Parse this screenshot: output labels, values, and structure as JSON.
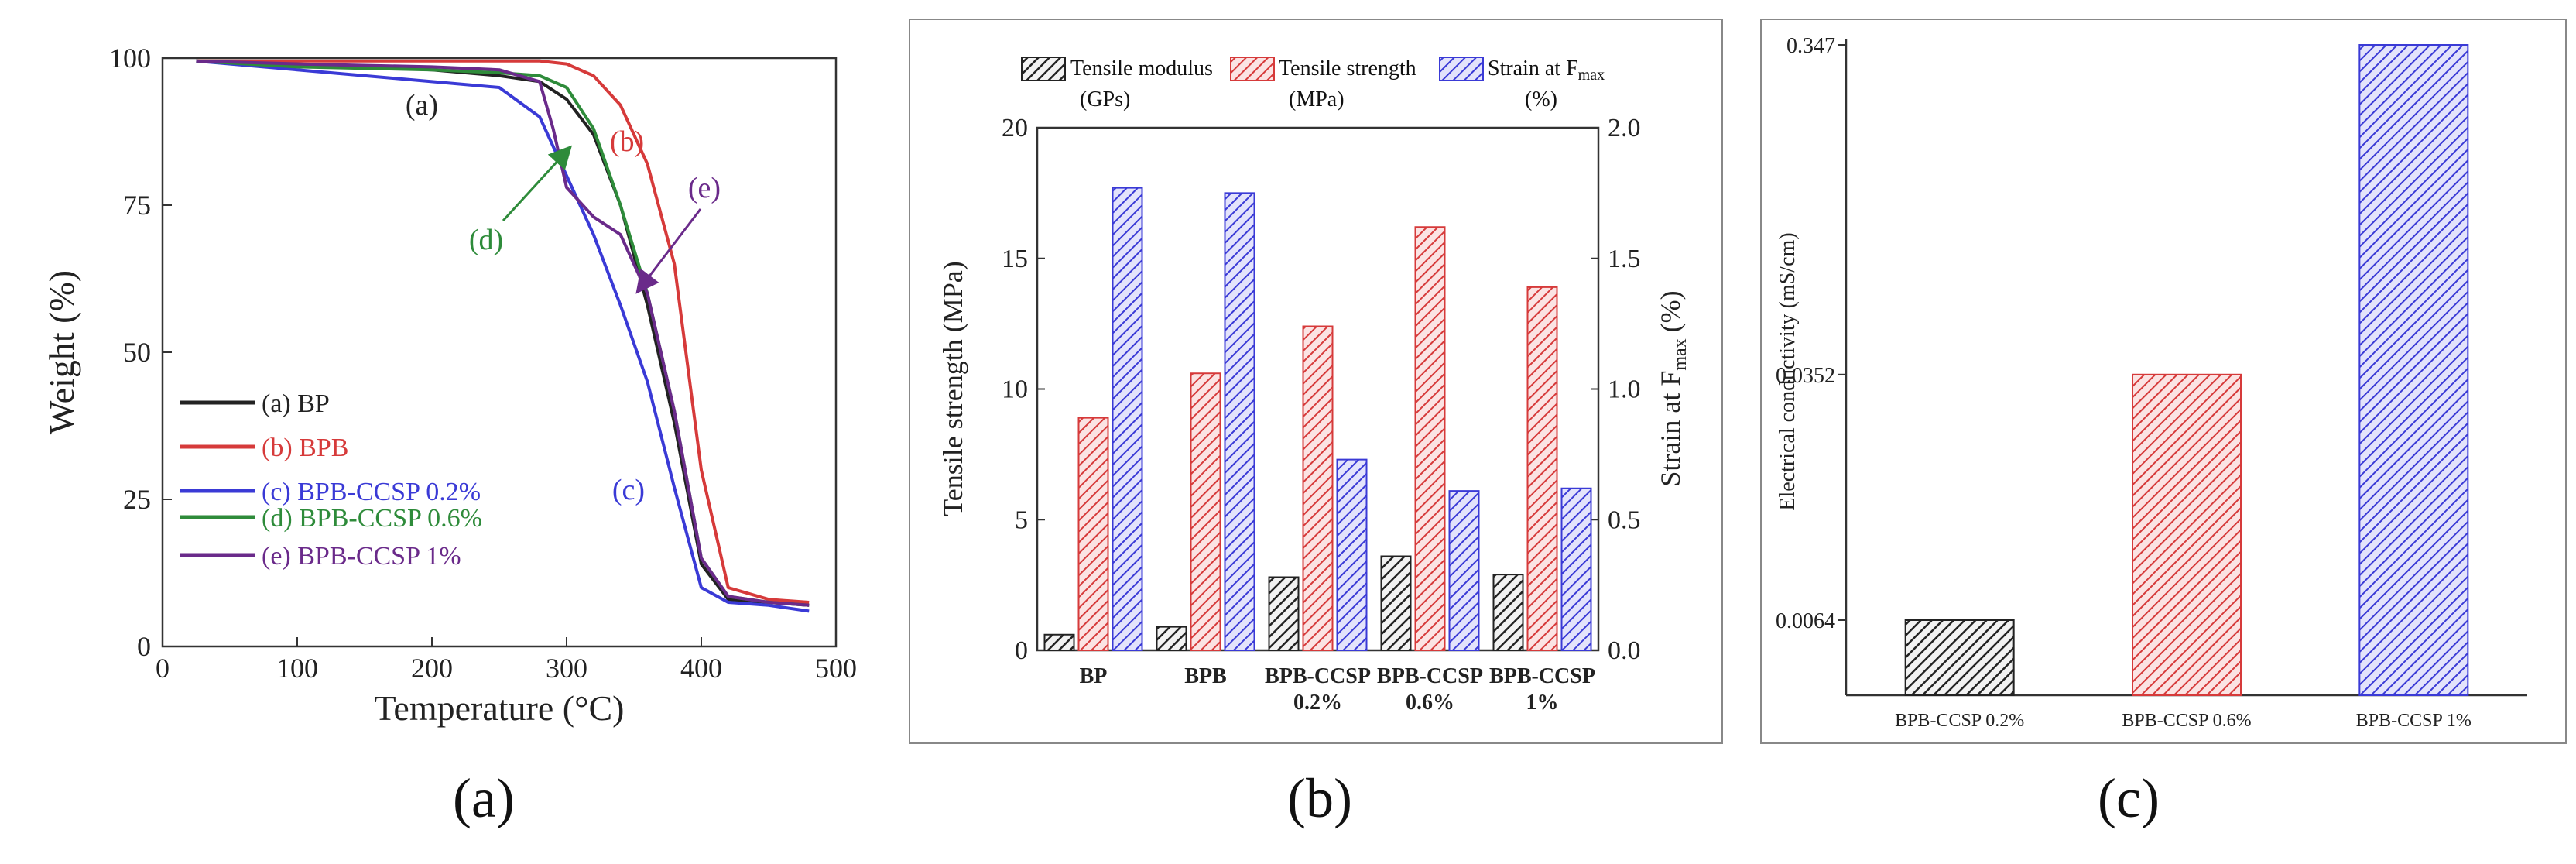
{
  "colors": {
    "black": "#222222",
    "red": "#d63a3a",
    "blue": "#3a3ad6",
    "green": "#2e8b3a",
    "purple": "#6a2a8a",
    "frame": "#555555"
  },
  "captions": {
    "a": "(a)",
    "b": "(b)",
    "c": "(c)"
  },
  "chart_data": [
    {
      "type": "line",
      "xlabel": "Temperature (°C)",
      "ylabel": "Weight (%)",
      "xlim": [
        0,
        500
      ],
      "ylim": [
        0,
        100
      ],
      "xticks": [
        0,
        100,
        200,
        300,
        400,
        500
      ],
      "yticks": [
        0,
        25,
        50,
        75,
        100
      ],
      "legend": {
        "placement": "lower-left",
        "entries": [
          "(a) BP",
          "(b) BPB",
          "(c) BPB-CCSP 0.2%",
          "(d) BPB-CCSP 0.6%",
          "(e) BPB-CCSP 1%"
        ]
      },
      "annotations": [
        "(a)",
        "(b)",
        "(c)",
        "(d)",
        "(e)"
      ],
      "series": [
        {
          "name": "(a) BP",
          "color": "#222222",
          "x": [
            25,
            100,
            200,
            250,
            280,
            300,
            320,
            340,
            360,
            380,
            400,
            420,
            450,
            480
          ],
          "y": [
            99.5,
            99,
            98,
            97,
            96,
            93,
            87,
            75,
            58,
            38,
            14,
            8,
            7.5,
            7
          ]
        },
        {
          "name": "(b) BPB",
          "color": "#d63a3a",
          "x": [
            25,
            100,
            200,
            280,
            300,
            320,
            340,
            360,
            380,
            400,
            420,
            450,
            480
          ],
          "y": [
            99.5,
            99.5,
            99.5,
            99.5,
            99,
            97,
            92,
            82,
            65,
            30,
            10,
            8,
            7.5
          ]
        },
        {
          "name": "(c) BPB-CCSP 0.2%",
          "color": "#3a3ad6",
          "x": [
            25,
            100,
            200,
            250,
            280,
            300,
            320,
            340,
            360,
            380,
            400,
            420,
            450,
            480
          ],
          "y": [
            99.5,
            98,
            96,
            95,
            90,
            80,
            70,
            58,
            45,
            27,
            10,
            7.5,
            7,
            6
          ]
        },
        {
          "name": "(d) BPB-CCSP 0.6%",
          "color": "#2e8b3a",
          "x": [
            25,
            100,
            200,
            250,
            280,
            300,
            320,
            340,
            360,
            380,
            400,
            420,
            450,
            480
          ],
          "y": [
            99.5,
            98.5,
            98,
            97.5,
            97,
            95,
            88,
            75,
            60,
            40,
            15,
            8.5,
            7.5,
            7
          ]
        },
        {
          "name": "(e) BPB-CCSP 1%",
          "color": "#6a2a8a",
          "x": [
            25,
            100,
            200,
            250,
            280,
            290,
            300,
            320,
            340,
            360,
            380,
            400,
            420,
            450,
            480
          ],
          "y": [
            99.5,
            99,
            98.5,
            98,
            96,
            88,
            78,
            73,
            70,
            60,
            40,
            15,
            8.5,
            7.5,
            7
          ]
        }
      ]
    },
    {
      "type": "bar",
      "categories": [
        "BP",
        "BPB",
        "BPB-CCSP 0.2%",
        "BPB-CCSP 0.6%",
        "BPB-CCSP 1%"
      ],
      "category_lines": [
        [
          "BP"
        ],
        [
          "BPB"
        ],
        [
          "BPB-CCSP",
          "0.2%"
        ],
        [
          "BPB-CCSP",
          "0.6%"
        ],
        [
          "BPB-CCSP",
          "1%"
        ]
      ],
      "ylabel": "Tensile strength (MPa)",
      "y2label": "Strain at F",
      "y2label_sub": "max",
      "y2label_unit": "(%)",
      "ylim": [
        0,
        20
      ],
      "y2lim": [
        0,
        2.0
      ],
      "yticks": [
        0,
        5,
        10,
        15,
        20
      ],
      "y2ticks": [
        "0.0",
        "0.5",
        "1.0",
        "1.5",
        "2.0"
      ],
      "legend": {
        "placement": "top",
        "entries": [
          {
            "label": "Tensile modulus",
            "unit": "(GPs)"
          },
          {
            "label": "Tensile strength",
            "unit": "(MPa)"
          },
          {
            "label": "Strain at F",
            "sub": "max",
            "unit": "(%)"
          }
        ]
      },
      "series": [
        {
          "name": "Tensile modulus",
          "axis": "left",
          "color": "#222222",
          "values": [
            0.6,
            0.9,
            2.8,
            3.6,
            2.9
          ]
        },
        {
          "name": "Tensile strength",
          "axis": "left",
          "color": "#d63a3a",
          "values": [
            8.9,
            10.6,
            12.4,
            16.2,
            13.9
          ]
        },
        {
          "name": "Strain at Fmax",
          "axis": "right",
          "color": "#3a3ad6",
          "values": [
            1.77,
            1.75,
            0.73,
            0.61,
            0.62
          ]
        }
      ]
    },
    {
      "type": "bar",
      "categories": [
        "BPB-CCSP 0.2%",
        "BPB-CCSP 0.6%",
        "BPB-CCSP 1%"
      ],
      "values": [
        0.0064,
        0.0352,
        0.347
      ],
      "colors": [
        "#222222",
        "#d63a3a",
        "#3a3ad6"
      ],
      "ylabel": "Electrical conductivity (mS/cm)",
      "yscale": "log",
      "yticks": [
        "0.0064",
        "0.0352",
        "0.347"
      ],
      "ylim": [
        0.0038,
        0.347
      ]
    }
  ]
}
